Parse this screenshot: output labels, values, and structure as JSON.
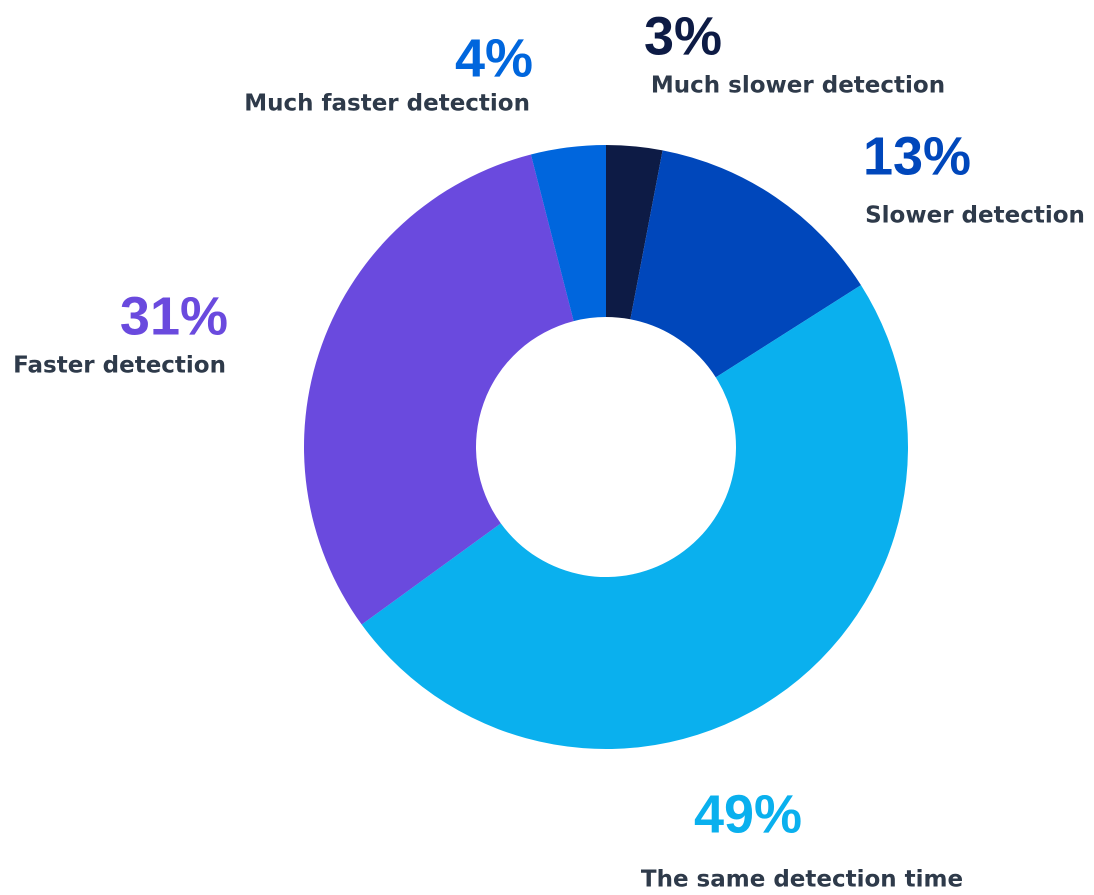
{
  "chart_data": {
    "type": "donut",
    "categories": [
      "Much slower detection",
      "Slower detection",
      "The same detection time",
      "Faster detection",
      "Much faster detection"
    ],
    "values": [
      3,
      13,
      49,
      31,
      4
    ],
    "value_labels": [
      "3%",
      "13%",
      "49%",
      "31%",
      "4%"
    ],
    "colors": [
      "#0d1b45",
      "#0047bb",
      "#0ab0ee",
      "#6a4ade",
      "#0066dd"
    ]
  }
}
